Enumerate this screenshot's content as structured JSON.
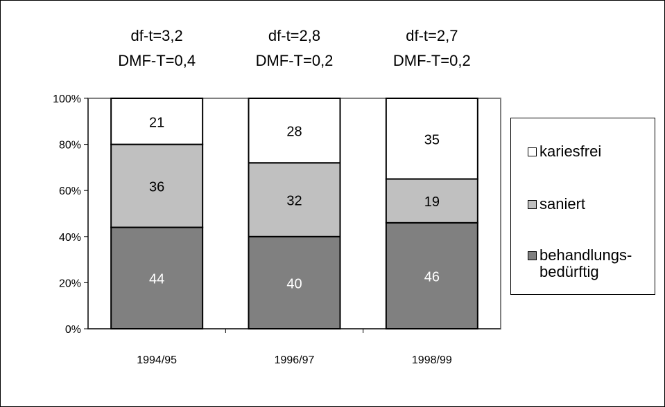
{
  "chart_data": {
    "type": "bar",
    "stacked": true,
    "percent_stacked": true,
    "categories": [
      "1994/95",
      "1996/97",
      "1998/99"
    ],
    "series": [
      {
        "name": "behandlungs-\nbedürftig",
        "values": [
          44,
          40,
          46
        ],
        "color": "#808080"
      },
      {
        "name": "saniert",
        "values": [
          36,
          32,
          19
        ],
        "color": "#c0c0c0"
      },
      {
        "name": "kariesfrei",
        "values": [
          21,
          28,
          35
        ],
        "color": "#ffffff"
      }
    ],
    "yticks": [
      "0%",
      "20%",
      "40%",
      "60%",
      "80%",
      "100%"
    ],
    "ylim": [
      0,
      100
    ],
    "annotations": [
      [
        "df-t=3,2",
        "DMF-T=0,4"
      ],
      [
        "df-t=2,8",
        "DMF-T=0,2"
      ],
      [
        "df-t=2,7",
        "DMF-T=0,2"
      ]
    ],
    "grid": false,
    "legend_position": "right"
  },
  "legend": [
    {
      "label": "kariesfrei",
      "color": "#ffffff"
    },
    {
      "label": "saniert",
      "color": "#c0c0c0"
    },
    {
      "label": "behandlungs-\nbedürftig",
      "color": "#808080"
    }
  ]
}
